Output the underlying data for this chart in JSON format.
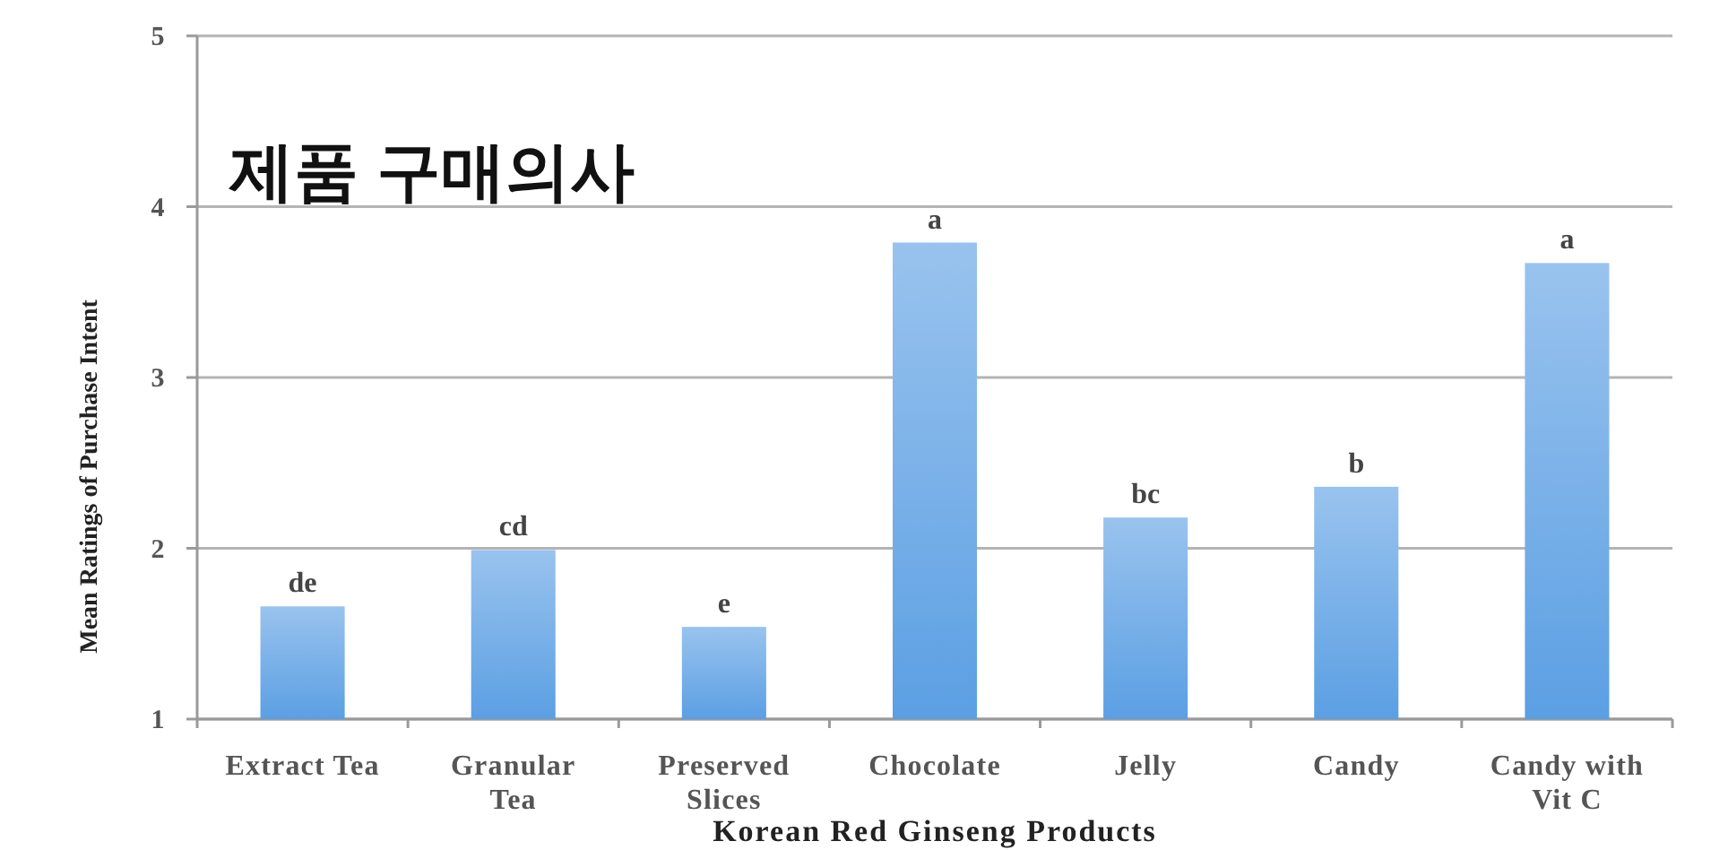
{
  "chart_data": {
    "type": "bar",
    "title": "제품 구매의사",
    "xlabel": "Korean Red Ginseng Products",
    "ylabel": "Mean Ratings of Purchase Intent",
    "categories": [
      "Extract Tea",
      "Granular Tea",
      "Preserved Slices",
      "Chocolate",
      "Jelly",
      "Candy",
      "Candy with Vit C"
    ],
    "values": [
      1.66,
      1.99,
      1.54,
      3.79,
      2.18,
      2.36,
      3.67
    ],
    "value_labels": [
      "de",
      "cd",
      "e",
      "a",
      "bc",
      "b",
      "a"
    ],
    "color": "#5b9fe3",
    "ylim": [
      1,
      5
    ],
    "yticks": [
      1,
      2,
      3,
      4,
      5
    ],
    "grid": "y"
  }
}
